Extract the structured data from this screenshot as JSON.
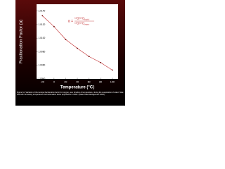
{
  "chart_data": {
    "type": "line",
    "y_label": "Fractionation Factor (α)",
    "x_label": "Temperature (°C)",
    "annotation": {
      "lhs": "α =",
      "numerator": "¹⁸O/¹⁶O",
      "numerator_sub": "liquid",
      "denominator": "¹⁸O/¹⁶O",
      "denominator_sub": "vapor"
    },
    "x": [
      -20,
      0,
      20,
      40,
      60,
      80,
      100
    ],
    "series": [
      {
        "name": "α",
        "color": "#c0282a",
        "values": [
          1.0133,
          1.0117,
          1.0098,
          1.0085,
          1.0073,
          1.0064,
          1.0053
        ]
      }
    ],
    "xlim": [
      -30,
      110
    ],
    "xticks": [
      -20,
      0,
      20,
      40,
      60,
      80,
      100
    ],
    "ylim": [
      1.004,
      1.015
    ],
    "yticks": [
      {
        "value": 1.004,
        "label": "1.0040"
      },
      {
        "value": 1.006,
        "label": "1.0060"
      },
      {
        "value": 1.008,
        "label": "1.0080"
      },
      {
        "value": 1.01,
        "label": "1.0100"
      },
      {
        "value": 1.012,
        "label": "1.0120"
      },
      {
        "value": 1.014,
        "label": "1.0140"
      }
    ],
    "caption": "Figure 6-4 Variation of the isotope fractionation factor for oxygen, as a function of temperature, during the evaporation of water. Note that with increasing temperature the fractionation factor approaches 1.0000. (Water Data Management 2000)."
  }
}
